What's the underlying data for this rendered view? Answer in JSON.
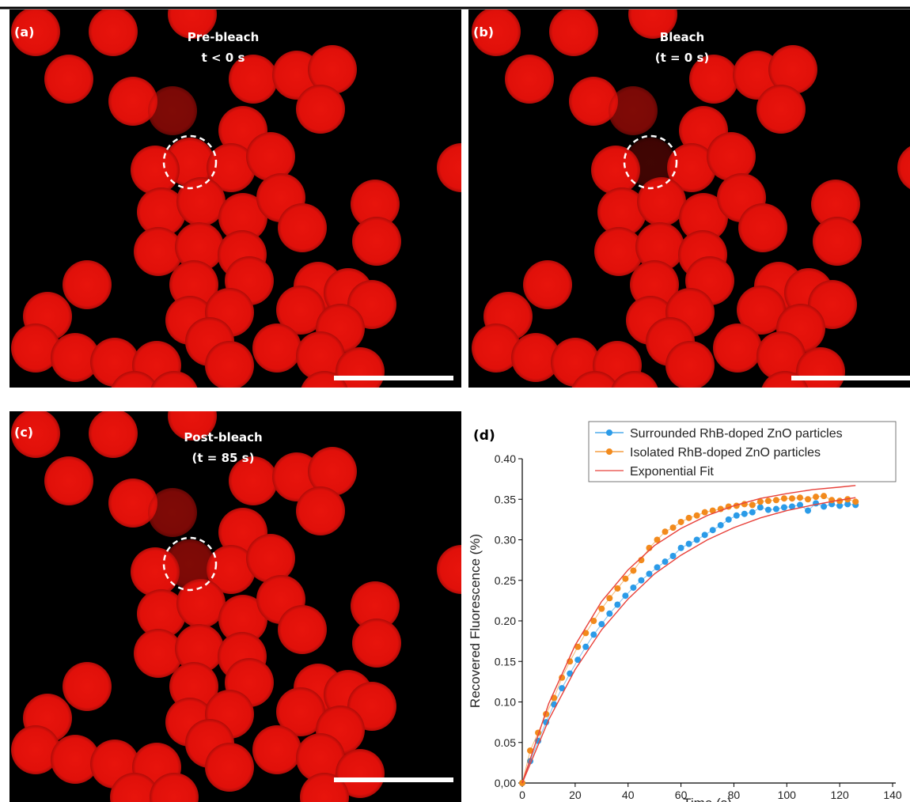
{
  "panels": [
    {
      "label": "(a)",
      "title": "Pre-bleach",
      "subtitle": "t < 0 s"
    },
    {
      "label": "(b)",
      "title": "Bleach",
      "subtitle": "(t = 0 s)"
    },
    {
      "label": "(c)",
      "title": "Post-bleach",
      "subtitle": "(t = 85 s)"
    }
  ],
  "chart_data": {
    "type": "scatter",
    "panel_label": "(d)",
    "x_label": "Time (s)",
    "y_label": "Recovered Fluorescence (%)",
    "xlim": [
      0,
      140
    ],
    "xticks": [
      0,
      20,
      40,
      60,
      80,
      100,
      120,
      140
    ],
    "ylim": [
      0,
      0.4
    ],
    "yticks": [
      {
        "value": 0,
        "label": "0,00"
      },
      {
        "value": 0.05,
        "label": "0.05"
      },
      {
        "value": 0.1,
        "label": "0.10"
      },
      {
        "value": 0.15,
        "label": "0.15"
      },
      {
        "value": 0.2,
        "label": "0.20"
      },
      {
        "value": 0.25,
        "label": "0.25"
      },
      {
        "value": 0.3,
        "label": "0.30"
      },
      {
        "value": 0.35,
        "label": "0.35"
      },
      {
        "value": 0.4,
        "label": "0.40"
      }
    ],
    "legend": "top-right",
    "series": [
      {
        "name": "Surrounded RhB-doped ZnO particles",
        "color": "#2b9be8",
        "markers": true,
        "x": [
          0,
          3,
          6,
          9,
          12,
          15,
          18,
          21,
          24,
          27,
          30,
          33,
          36,
          39,
          42,
          45,
          48,
          51,
          54,
          57,
          60,
          63,
          66,
          69,
          72,
          75,
          78,
          81,
          84,
          87,
          90,
          93,
          96,
          99,
          102,
          105,
          108,
          111,
          114,
          117,
          120,
          123,
          126
        ],
        "values": [
          0,
          0.027,
          0.052,
          0.075,
          0.097,
          0.117,
          0.135,
          0.152,
          0.168,
          0.183,
          0.196,
          0.209,
          0.22,
          0.231,
          0.241,
          0.25,
          0.258,
          0.266,
          0.273,
          0.28,
          0.29,
          0.295,
          0.3,
          0.306,
          0.312,
          0.318,
          0.325,
          0.33,
          0.332,
          0.334,
          0.34,
          0.337,
          0.338,
          0.34,
          0.341,
          0.343,
          0.336,
          0.345,
          0.341,
          0.344,
          0.342,
          0.344,
          0.343
        ]
      },
      {
        "name": "Isolated RhB-doped ZnO particles",
        "color": "#f28a1c",
        "markers": true,
        "x": [
          0,
          3,
          6,
          9,
          12,
          15,
          18,
          21,
          24,
          27,
          30,
          33,
          36,
          39,
          42,
          45,
          48,
          51,
          54,
          57,
          60,
          63,
          66,
          69,
          72,
          75,
          78,
          81,
          84,
          87,
          90,
          93,
          96,
          99,
          102,
          105,
          108,
          111,
          114,
          117,
          120,
          123,
          126
        ],
        "values": [
          0,
          0.04,
          0.062,
          0.085,
          0.105,
          0.13,
          0.15,
          0.168,
          0.185,
          0.2,
          0.215,
          0.228,
          0.24,
          0.252,
          0.262,
          0.275,
          0.29,
          0.3,
          0.31,
          0.315,
          0.322,
          0.327,
          0.33,
          0.334,
          0.336,
          0.338,
          0.341,
          0.342,
          0.344,
          0.343,
          0.347,
          0.348,
          0.349,
          0.351,
          0.351,
          0.352,
          0.35,
          0.353,
          0.354,
          0.349,
          0.348,
          0.35,
          0.347
        ]
      },
      {
        "name": "Exponential Fit",
        "color": "#e8413a",
        "markers": false,
        "x": [
          0,
          10,
          20,
          30,
          40,
          50,
          60,
          70,
          80,
          90,
          100,
          110,
          120,
          126
        ],
        "values": [
          0,
          0.098,
          0.17,
          0.224,
          0.263,
          0.293,
          0.314,
          0.33,
          0.342,
          0.351,
          0.357,
          0.362,
          0.365,
          0.367
        ]
      },
      {
        "color": "#e8413a",
        "markers": false,
        "x": [
          0,
          10,
          20,
          30,
          40,
          50,
          60,
          70,
          80,
          90,
          100,
          110,
          120,
          126
        ],
        "values": [
          0,
          0.078,
          0.14,
          0.189,
          0.227,
          0.258,
          0.281,
          0.3,
          0.315,
          0.327,
          0.336,
          0.343,
          0.349,
          0.352
        ]
      }
    ]
  }
}
